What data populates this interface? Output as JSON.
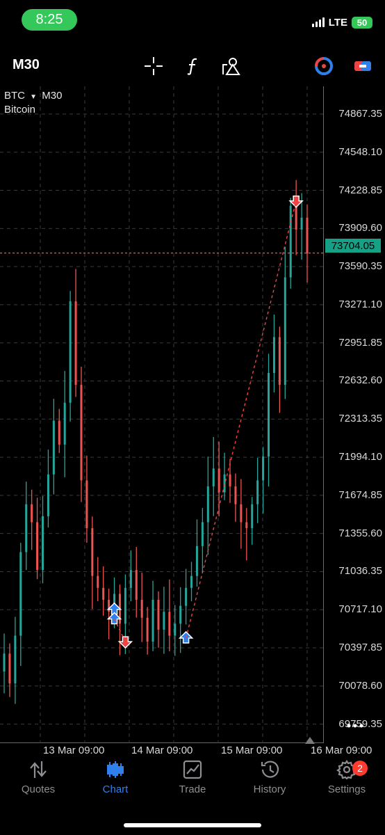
{
  "status": {
    "time": "8:25",
    "network": "LTE",
    "battery": "50"
  },
  "toolbar": {
    "timeframe": "M30",
    "icons": [
      "crosshair-icon",
      "function-icon",
      "objects-icon",
      "one-click-trading-icon",
      "account-switch-icon"
    ]
  },
  "chart": {
    "symbol": "BTC",
    "timeframe": "M30",
    "description": "Bitcoin",
    "current_price": "73704.05",
    "price_scale": [
      "74867.35",
      "74548.10",
      "74228.85",
      "73909.60",
      "73590.35",
      "73271.10",
      "72951.85",
      "72632.60",
      "72313.35",
      "71994.10",
      "71674.85",
      "71355.60",
      "71036.35",
      "70717.10",
      "70397.85",
      "70078.60",
      "69759.35"
    ],
    "date_axis": [
      "13 Mar 09:00",
      "14 Mar 09:00",
      "15 Mar 09:00",
      "16 Mar 09:00"
    ],
    "colors": {
      "bull": "#26a69a",
      "bear": "#ef5350",
      "current_line": "#ef5350",
      "grid": "#3a3a3a"
    }
  },
  "chart_data": {
    "type": "candlestick",
    "title": "",
    "symbol": "BTC",
    "timeframe": "M30",
    "ylim": [
      69600,
      75100
    ],
    "x_ticks": [
      "13 Mar 09:00",
      "14 Mar 09:00",
      "15 Mar 09:00",
      "16 Mar 09:00"
    ],
    "current_price": 73704.05,
    "closes": [
      70350,
      70100,
      70500,
      71200,
      71600,
      71450,
      71050,
      71500,
      71850,
      72300,
      72100,
      72450,
      73300,
      72600,
      71800,
      71400,
      71000,
      70900,
      70800,
      70700,
      70850,
      70600,
      70900,
      71050,
      70800,
      70650,
      70450,
      70800,
      70550,
      70700,
      70500,
      70600,
      70750,
      70900,
      71000,
      71250,
      71450,
      71750,
      71900,
      71700,
      71850,
      71750,
      71600,
      71450,
      71400,
      71600,
      71800,
      72000,
      72700,
      73000,
      72600,
      73500,
      74100,
      73900,
      74000,
      73700
    ],
    "trades": [
      {
        "side": "buy",
        "price": 70720
      },
      {
        "side": "buy",
        "price": 70640
      },
      {
        "side": "sell",
        "price": 70450
      },
      {
        "side": "buy",
        "price": 70480
      },
      {
        "side": "sell",
        "price": 74140
      }
    ]
  },
  "nav": [
    {
      "label": "Quotes",
      "icon": "quotes-icon"
    },
    {
      "label": "Chart",
      "icon": "chart-icon"
    },
    {
      "label": "Trade",
      "icon": "trade-icon"
    },
    {
      "label": "History",
      "icon": "history-icon"
    },
    {
      "label": "Settings",
      "icon": "settings-icon"
    }
  ],
  "badge_count": "2",
  "more_icon": "more-horizontal-icon"
}
